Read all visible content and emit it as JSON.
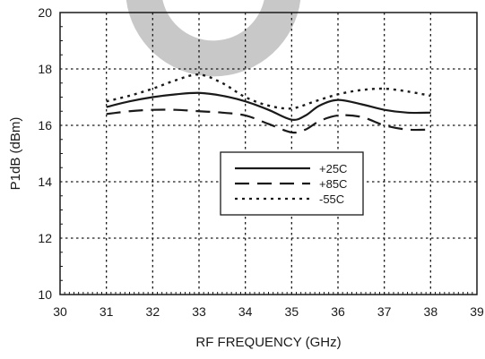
{
  "chart_data": {
    "type": "line",
    "xlabel": "RF FREQUENCY (GHz)",
    "ylabel": "P1dB  (dBm)",
    "xlim": [
      30,
      39
    ],
    "ylim": [
      10,
      20
    ],
    "xticks": [
      30,
      31,
      32,
      33,
      34,
      35,
      36,
      37,
      38,
      39
    ],
    "yticks": [
      10,
      12,
      14,
      16,
      18,
      20
    ],
    "grid": true,
    "legend_position": "center-right",
    "series": [
      {
        "name": "+25C",
        "style": "solid",
        "x": [
          31,
          31.5,
          32,
          32.5,
          33,
          33.5,
          34,
          34.5,
          35,
          35.3,
          35.6,
          36,
          36.5,
          37,
          37.5,
          38
        ],
        "y": [
          16.65,
          16.85,
          17.0,
          17.1,
          17.15,
          17.05,
          16.85,
          16.55,
          16.2,
          16.35,
          16.7,
          16.9,
          16.75,
          16.55,
          16.45,
          16.45
        ]
      },
      {
        "name": "+85C",
        "style": "dashed",
        "x": [
          31,
          31.5,
          32,
          32.5,
          33,
          33.5,
          34,
          34.5,
          35,
          35.3,
          35.6,
          36,
          36.5,
          37,
          37.5,
          38
        ],
        "y": [
          16.4,
          16.5,
          16.55,
          16.55,
          16.5,
          16.45,
          16.35,
          16.05,
          15.75,
          15.85,
          16.15,
          16.35,
          16.3,
          16.0,
          15.85,
          15.85
        ]
      },
      {
        "name": "-55C",
        "style": "dotted",
        "x": [
          31,
          31.5,
          32,
          32.5,
          33,
          33.5,
          34,
          34.5,
          35,
          35.5,
          36,
          36.5,
          37,
          37.5,
          38
        ],
        "y": [
          16.85,
          17.05,
          17.3,
          17.6,
          17.8,
          17.5,
          17.0,
          16.7,
          16.6,
          16.85,
          17.1,
          17.25,
          17.3,
          17.2,
          17.05
        ]
      }
    ]
  },
  "colors": {
    "line": "#1a1a1a",
    "grid": "#1a1a1a",
    "watermark": "#c8c8c8",
    "background": "#ffffff"
  }
}
